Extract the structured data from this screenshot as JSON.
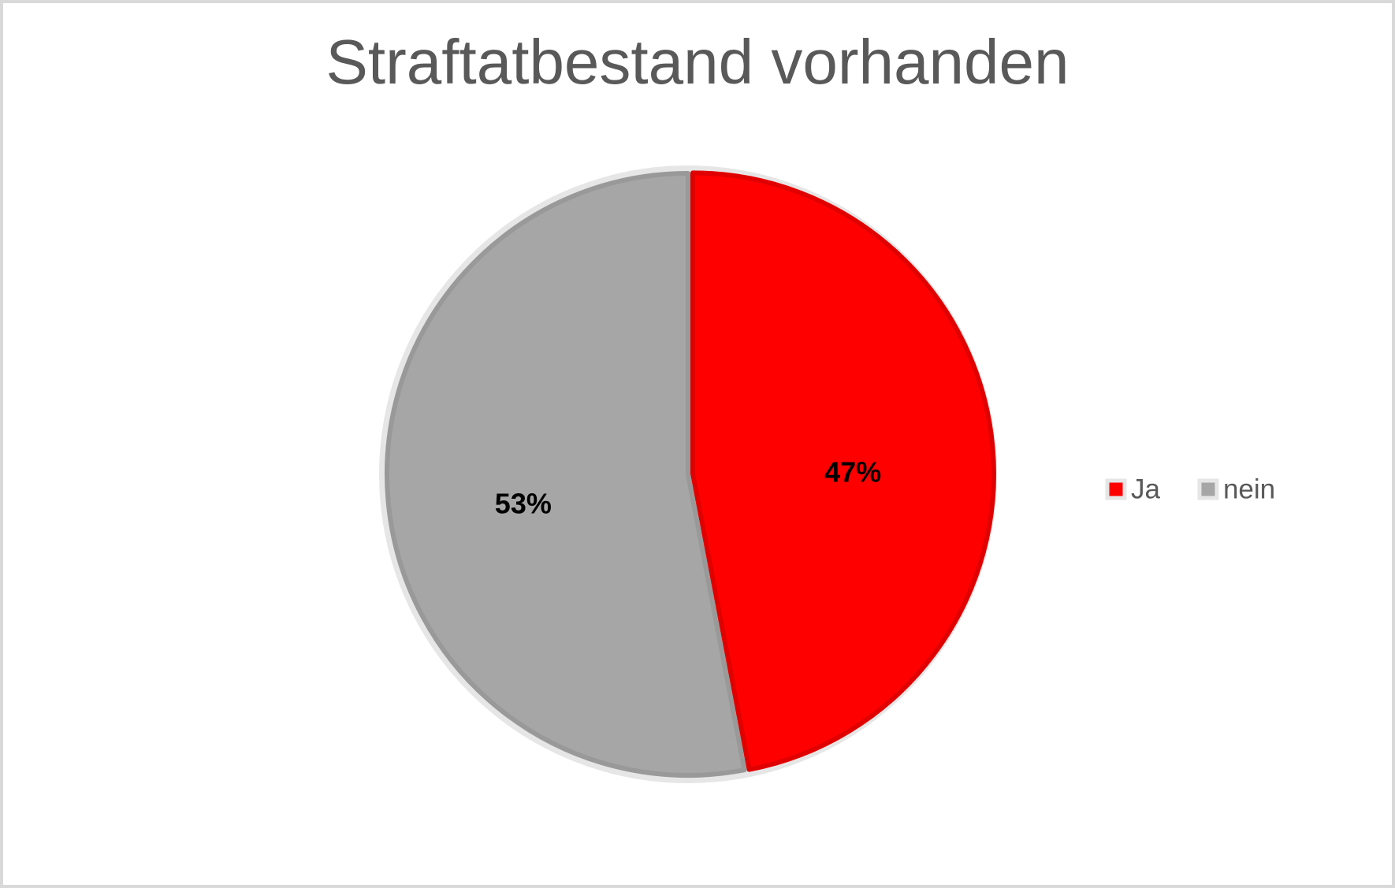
{
  "chart_data": {
    "type": "pie",
    "title": "Straftatbestand vorhanden",
    "categories": [
      "Ja",
      "nein"
    ],
    "values": [
      47,
      53
    ],
    "value_labels": [
      "47%",
      "53%"
    ],
    "colors": [
      "#ff0000",
      "#a6a6a6"
    ],
    "legend": "right"
  }
}
